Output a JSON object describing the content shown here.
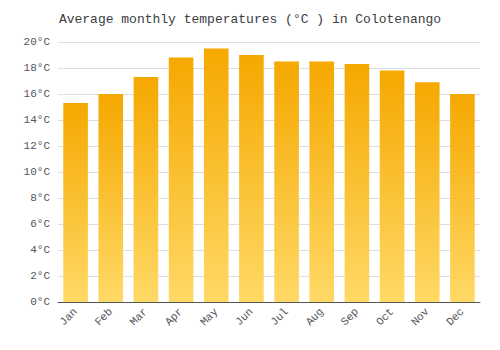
{
  "chart_data": {
    "type": "bar",
    "title": "Average monthly temperatures (°C ) in Colotenango",
    "categories": [
      "Jan",
      "Feb",
      "Mar",
      "Apr",
      "May",
      "Jun",
      "Jul",
      "Aug",
      "Sep",
      "Oct",
      "Nov",
      "Dec"
    ],
    "values": [
      15.3,
      16.0,
      17.3,
      18.8,
      19.5,
      19.0,
      18.5,
      18.5,
      18.3,
      17.8,
      16.9,
      16.0
    ],
    "color": [
      "#FFD966",
      "#F5A800"
    ],
    "ylim": [
      0,
      20
    ],
    "yticks": [
      {
        "value": 0,
        "label": "0°C"
      },
      {
        "value": 2,
        "label": "2°C"
      },
      {
        "value": 4,
        "label": "4°C"
      },
      {
        "value": 6,
        "label": "6°C"
      },
      {
        "value": 8,
        "label": "8°C"
      },
      {
        "value": 10,
        "label": "10°C"
      },
      {
        "value": 12,
        "label": "12°C"
      },
      {
        "value": 14,
        "label": "14°C"
      },
      {
        "value": 16,
        "label": "16°C"
      },
      {
        "value": 18,
        "label": "18°C"
      },
      {
        "value": 20,
        "label": "20°C"
      }
    ],
    "grid": true
  }
}
